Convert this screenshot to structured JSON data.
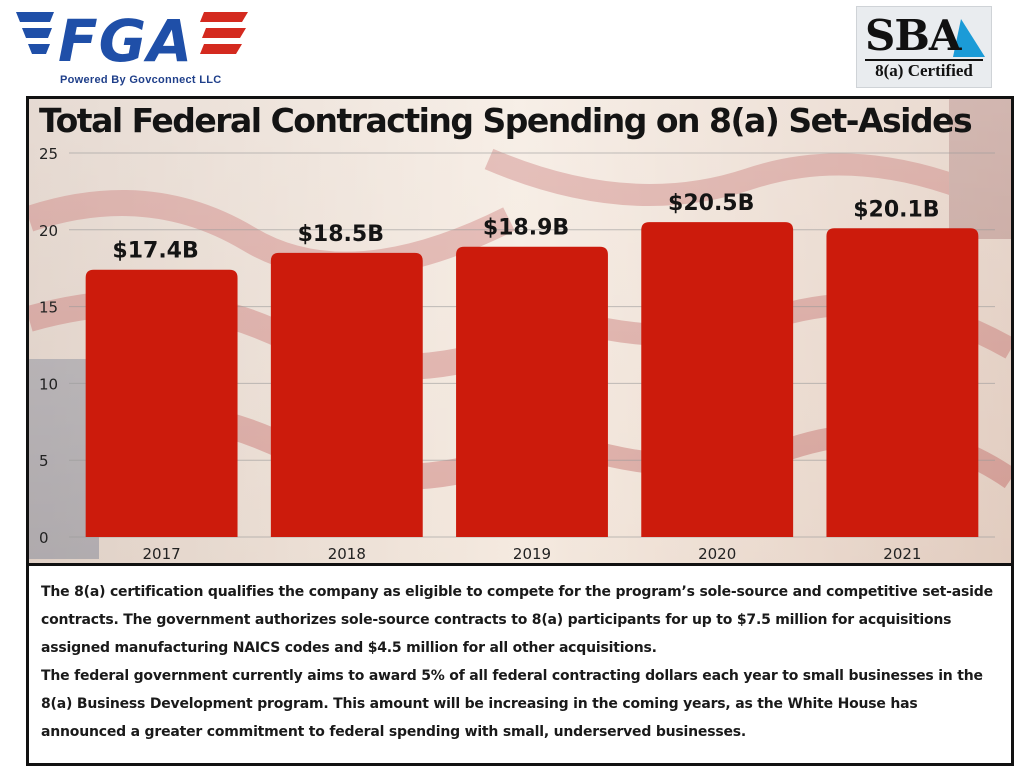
{
  "header": {
    "fga_logo": {
      "wordmark": "FGA",
      "tagline": "Powered By Govconnect LLC"
    },
    "sba_logo": {
      "wordmark": "SBA",
      "badge": "8(a) Certified"
    }
  },
  "chart_data": {
    "type": "bar",
    "title": "Total Federal Contracting Spending on 8(a) Set-Asides",
    "categories": [
      "2017",
      "2018",
      "2019",
      "2020",
      "2021"
    ],
    "values": [
      17.4,
      18.5,
      18.9,
      20.5,
      20.1
    ],
    "data_labels": [
      "$17.4B",
      "$18.5B",
      "$18.9B",
      "$20.5B",
      "$20.1B"
    ],
    "y_ticks": [
      "0",
      "5",
      "10",
      "15",
      "20",
      "25"
    ],
    "y_tick_values": [
      0,
      5,
      10,
      15,
      20,
      25
    ],
    "ylim": [
      0,
      25
    ],
    "xlabel": "",
    "ylabel": "",
    "grid": true,
    "bar_color": "#cc1b0c"
  },
  "description": {
    "paragraph_1": "The 8(a) certification qualifies the company as eligible to compete for the program’s sole-source and competitive set-aside contracts. The government authorizes sole-source contracts to 8(a) participants for up to $7.5 million for acquisitions assigned manufacturing NAICS codes and $4.5 million for all other acquisitions.",
    "paragraph_2": "The federal government currently aims to award 5% of all federal contracting dollars each year to small businesses in the 8(a) Business Development program. This amount will be increasing in the coming years, as the White House has announced a greater commitment to federal spending with small, underserved businesses."
  }
}
